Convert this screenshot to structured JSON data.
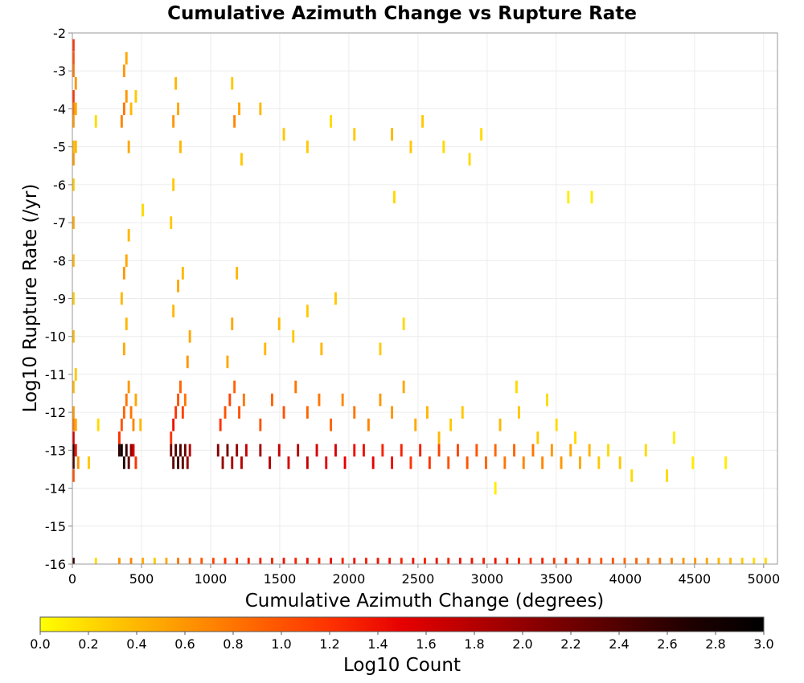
{
  "chart_data": {
    "type": "heatmap",
    "title": "Cumulative Azimuth Change vs Rupture Rate",
    "xlabel": "Cumulative Azimuth Change (degrees)",
    "ylabel": "Log10 Rupture Rate (/yr)",
    "xlim": [
      0,
      5100
    ],
    "ylim": [
      -16,
      -2
    ],
    "xticks": [
      0,
      500,
      1000,
      1500,
      2000,
      2500,
      3000,
      3500,
      4000,
      4500,
      5000
    ],
    "yticks": [
      -2,
      -3,
      -4,
      -5,
      -6,
      -7,
      -8,
      -9,
      -10,
      -11,
      -12,
      -13,
      -14,
      -15,
      -16
    ],
    "grid": true,
    "cell_width": 17,
    "cell_height": 0.33,
    "colorbar": {
      "label": "Log10 Count",
      "min": 0.0,
      "max": 3.0,
      "ticks": [
        "0.0",
        "0.2",
        "0.4",
        "0.6",
        "0.8",
        "1.0",
        "1.2",
        "1.4",
        "1.6",
        "1.8",
        "2.0",
        "2.2",
        "2.4",
        "2.6",
        "2.8",
        "3.0"
      ],
      "colors": [
        "#ffff00",
        "#ffc800",
        "#ff9600",
        "#ff6400",
        "#ff3200",
        "#e60000",
        "#b40000",
        "#820000",
        "#500000",
        "#1e0000",
        "#000000"
      ]
    },
    "notes": "Cells are sampled from the dense heatmap as [x_center, y_center, log10_count]",
    "cells": [
      [
        8,
        -13.0,
        2.6
      ],
      [
        8,
        -13.33,
        2.4
      ],
      [
        8,
        -12.67,
        1.6
      ],
      [
        8,
        -13.67,
        1.0
      ],
      [
        8,
        -12.33,
        0.8
      ],
      [
        8,
        -12.0,
        0.6
      ],
      [
        8,
        -11.33,
        0.4
      ],
      [
        8,
        -16.0,
        2.6
      ],
      [
        8,
        -2.33,
        1.2
      ],
      [
        8,
        -2.67,
        1.0
      ],
      [
        8,
        -3.0,
        0.8
      ],
      [
        8,
        -3.67,
        1.2
      ],
      [
        8,
        -4.0,
        0.8
      ],
      [
        8,
        -4.33,
        0.6
      ],
      [
        8,
        -5.0,
        0.4
      ],
      [
        8,
        -5.33,
        0.6
      ],
      [
        8,
        -6.0,
        0.3
      ],
      [
        8,
        -7.0,
        0.5
      ],
      [
        8,
        -8.0,
        0.4
      ],
      [
        8,
        -9.0,
        0.3
      ],
      [
        8,
        -10.0,
        0.4
      ],
      [
        25,
        -13.0,
        1.4
      ],
      [
        25,
        -3.33,
        0.6
      ],
      [
        25,
        -4.0,
        0.5
      ],
      [
        25,
        -5.0,
        0.4
      ],
      [
        25,
        -12.33,
        0.5
      ],
      [
        25,
        -11.0,
        0.3
      ],
      [
        42,
        -13.33,
        0.6
      ],
      [
        119,
        -13.33,
        0.3
      ],
      [
        170,
        -4.33,
        0.2
      ],
      [
        187,
        -12.33,
        0.2
      ],
      [
        340,
        -13.0,
        2.6
      ],
      [
        357,
        -13.0,
        2.8
      ],
      [
        374,
        -13.33,
        2.7
      ],
      [
        391,
        -13.0,
        2.6
      ],
      [
        408,
        -13.33,
        2.3
      ],
      [
        425,
        -13.0,
        2.0
      ],
      [
        442,
        -13.0,
        1.6
      ],
      [
        459,
        -13.33,
        1.2
      ],
      [
        340,
        -12.67,
        1.2
      ],
      [
        357,
        -12.33,
        1.0
      ],
      [
        374,
        -12.0,
        0.9
      ],
      [
        391,
        -11.67,
        0.8
      ],
      [
        408,
        -11.33,
        0.6
      ],
      [
        425,
        -12.0,
        0.8
      ],
      [
        442,
        -12.33,
        0.7
      ],
      [
        459,
        -11.67,
        0.5
      ],
      [
        374,
        -10.33,
        0.5
      ],
      [
        391,
        -9.67,
        0.4
      ],
      [
        357,
        -9.0,
        0.4
      ],
      [
        374,
        -8.33,
        0.6
      ],
      [
        391,
        -8.0,
        0.5
      ],
      [
        408,
        -7.33,
        0.4
      ],
      [
        357,
        -4.33,
        0.7
      ],
      [
        374,
        -4.0,
        0.8
      ],
      [
        391,
        -3.67,
        0.6
      ],
      [
        408,
        -5.0,
        0.5
      ],
      [
        374,
        -3.0,
        0.6
      ],
      [
        391,
        -2.67,
        0.5
      ],
      [
        425,
        -4.0,
        0.4
      ],
      [
        459,
        -3.67,
        0.3
      ],
      [
        510,
        -6.67,
        0.2
      ],
      [
        493,
        -12.33,
        0.4
      ],
      [
        714,
        -13.0,
        2.2
      ],
      [
        731,
        -13.33,
        2.3
      ],
      [
        748,
        -13.0,
        2.4
      ],
      [
        765,
        -13.33,
        2.5
      ],
      [
        782,
        -13.0,
        2.4
      ],
      [
        799,
        -13.33,
        2.3
      ],
      [
        816,
        -13.0,
        2.2
      ],
      [
        833,
        -13.33,
        2.0
      ],
      [
        850,
        -13.0,
        1.8
      ],
      [
        714,
        -12.67,
        1.2
      ],
      [
        731,
        -12.33,
        1.4
      ],
      [
        748,
        -12.0,
        1.2
      ],
      [
        765,
        -11.67,
        1.0
      ],
      [
        782,
        -11.33,
        0.9
      ],
      [
        799,
        -12.0,
        1.1
      ],
      [
        816,
        -11.67,
        0.8
      ],
      [
        833,
        -10.67,
        0.6
      ],
      [
        850,
        -10.0,
        0.5
      ],
      [
        731,
        -9.33,
        0.4
      ],
      [
        765,
        -8.67,
        0.5
      ],
      [
        799,
        -8.33,
        0.4
      ],
      [
        731,
        -4.33,
        0.6
      ],
      [
        765,
        -4.0,
        0.5
      ],
      [
        748,
        -3.33,
        0.4
      ],
      [
        782,
        -5.0,
        0.4
      ],
      [
        731,
        -6.0,
        0.3
      ],
      [
        714,
        -7.0,
        0.3
      ],
      [
        1054,
        -13.0,
        2.1
      ],
      [
        1088,
        -13.33,
        2.0
      ],
      [
        1122,
        -13.0,
        2.2
      ],
      [
        1156,
        -13.33,
        1.9
      ],
      [
        1190,
        -13.0,
        2.0
      ],
      [
        1224,
        -13.33,
        1.8
      ],
      [
        1258,
        -13.0,
        1.7
      ],
      [
        1071,
        -12.33,
        1.2
      ],
      [
        1105,
        -12.0,
        1.0
      ],
      [
        1139,
        -11.67,
        1.1
      ],
      [
        1173,
        -11.33,
        0.9
      ],
      [
        1207,
        -12.0,
        1.0
      ],
      [
        1241,
        -11.67,
        0.8
      ],
      [
        1122,
        -10.67,
        0.5
      ],
      [
        1156,
        -9.67,
        0.5
      ],
      [
        1190,
        -8.33,
        0.4
      ],
      [
        1173,
        -4.33,
        0.7
      ],
      [
        1207,
        -4.0,
        0.5
      ],
      [
        1156,
        -3.33,
        0.3
      ],
      [
        1224,
        -5.33,
        0.3
      ],
      [
        1360,
        -13.0,
        1.9
      ],
      [
        1428,
        -13.33,
        1.8
      ],
      [
        1496,
        -13.0,
        1.7
      ],
      [
        1564,
        -13.33,
        1.6
      ],
      [
        1632,
        -13.0,
        1.8
      ],
      [
        1700,
        -13.33,
        1.7
      ],
      [
        1768,
        -13.0,
        1.6
      ],
      [
        1836,
        -13.33,
        1.5
      ],
      [
        1904,
        -13.0,
        1.6
      ],
      [
        1972,
        -13.33,
        1.5
      ],
      [
        2040,
        -13.0,
        1.4
      ],
      [
        1360,
        -12.33,
        1.0
      ],
      [
        1445,
        -11.67,
        0.9
      ],
      [
        1530,
        -12.0,
        1.0
      ],
      [
        1615,
        -11.33,
        0.8
      ],
      [
        1700,
        -12.0,
        0.9
      ],
      [
        1785,
        -11.67,
        0.8
      ],
      [
        1870,
        -12.33,
        0.9
      ],
      [
        1955,
        -11.67,
        0.7
      ],
      [
        2040,
        -12.0,
        0.8
      ],
      [
        1394,
        -10.33,
        0.4
      ],
      [
        1496,
        -9.67,
        0.4
      ],
      [
        1598,
        -10.0,
        0.3
      ],
      [
        1700,
        -9.33,
        0.3
      ],
      [
        1802,
        -10.33,
        0.4
      ],
      [
        1904,
        -9.0,
        0.3
      ],
      [
        1360,
        -4.0,
        0.4
      ],
      [
        1530,
        -4.67,
        0.3
      ],
      [
        1700,
        -5.0,
        0.3
      ],
      [
        1870,
        -4.33,
        0.2
      ],
      [
        2040,
        -4.67,
        0.3
      ],
      [
        2108,
        -13.0,
        1.4
      ],
      [
        2176,
        -13.33,
        1.5
      ],
      [
        2244,
        -13.0,
        1.3
      ],
      [
        2312,
        -13.33,
        1.4
      ],
      [
        2380,
        -13.0,
        1.3
      ],
      [
        2448,
        -13.33,
        1.2
      ],
      [
        2516,
        -13.0,
        1.3
      ],
      [
        2584,
        -13.33,
        1.2
      ],
      [
        2652,
        -13.0,
        1.1
      ],
      [
        2720,
        -13.33,
        1.0
      ],
      [
        2788,
        -13.0,
        1.1
      ],
      [
        2856,
        -13.33,
        1.0
      ],
      [
        2924,
        -13.0,
        1.0
      ],
      [
        2992,
        -13.33,
        0.9
      ],
      [
        2142,
        -12.33,
        0.7
      ],
      [
        2227,
        -11.67,
        0.6
      ],
      [
        2312,
        -12.0,
        0.6
      ],
      [
        2397,
        -11.33,
        0.5
      ],
      [
        2482,
        -12.33,
        0.5
      ],
      [
        2567,
        -12.0,
        0.4
      ],
      [
        2652,
        -12.67,
        0.4
      ],
      [
        2737,
        -12.33,
        0.3
      ],
      [
        2822,
        -12.0,
        0.3
      ],
      [
        2227,
        -10.33,
        0.3
      ],
      [
        2397,
        -9.67,
        0.2
      ],
      [
        2312,
        -4.67,
        0.4
      ],
      [
        2448,
        -5.0,
        0.3
      ],
      [
        2533,
        -4.33,
        0.3
      ],
      [
        2686,
        -5.0,
        0.2
      ],
      [
        2873,
        -5.33,
        0.2
      ],
      [
        2958,
        -4.67,
        0.2
      ],
      [
        2329,
        -6.33,
        0.2
      ],
      [
        3060,
        -13.0,
        0.9
      ],
      [
        3128,
        -13.33,
        0.8
      ],
      [
        3196,
        -13.0,
        0.9
      ],
      [
        3264,
        -13.33,
        0.7
      ],
      [
        3332,
        -13.0,
        0.8
      ],
      [
        3400,
        -13.33,
        0.7
      ],
      [
        3468,
        -13.0,
        0.6
      ],
      [
        3536,
        -13.33,
        0.6
      ],
      [
        3604,
        -13.0,
        0.5
      ],
      [
        3672,
        -13.33,
        0.5
      ],
      [
        3740,
        -13.0,
        0.4
      ],
      [
        3808,
        -13.33,
        0.3
      ],
      [
        3876,
        -13.0,
        0.2
      ],
      [
        3094,
        -12.33,
        0.4
      ],
      [
        3230,
        -12.0,
        0.3
      ],
      [
        3366,
        -12.67,
        0.3
      ],
      [
        3502,
        -12.33,
        0.2
      ],
      [
        3638,
        -12.67,
        0.2
      ],
      [
        3213,
        -11.33,
        0.2
      ],
      [
        3434,
        -11.67,
        0.2
      ],
      [
        3587,
        -6.33,
        0.1
      ],
      [
        3757,
        -6.33,
        0.1
      ],
      [
        3060,
        -14.0,
        0.1
      ],
      [
        3961,
        -13.33,
        0.3
      ],
      [
        4046,
        -13.67,
        0.2
      ],
      [
        4148,
        -13.0,
        0.2
      ],
      [
        4301,
        -13.67,
        0.2
      ],
      [
        4488,
        -13.33,
        0.1
      ],
      [
        4726,
        -13.33,
        0.1
      ],
      [
        4352,
        -12.67,
        0.1
      ],
      [
        170,
        -16.0,
        0.2
      ],
      [
        340,
        -16.0,
        0.6
      ],
      [
        425,
        -16.0,
        0.7
      ],
      [
        510,
        -16.0,
        0.5
      ],
      [
        595,
        -16.0,
        0.3
      ],
      [
        680,
        -16.0,
        0.5
      ],
      [
        765,
        -16.0,
        0.8
      ],
      [
        850,
        -16.0,
        0.9
      ],
      [
        935,
        -16.0,
        1.0
      ],
      [
        1020,
        -16.0,
        1.1
      ],
      [
        1105,
        -16.0,
        1.2
      ],
      [
        1190,
        -16.0,
        1.2
      ],
      [
        1275,
        -16.0,
        1.3
      ],
      [
        1360,
        -16.0,
        1.3
      ],
      [
        1445,
        -16.0,
        1.3
      ],
      [
        1530,
        -16.0,
        1.4
      ],
      [
        1615,
        -16.0,
        1.3
      ],
      [
        1700,
        -16.0,
        1.4
      ],
      [
        1785,
        -16.0,
        1.3
      ],
      [
        1870,
        -16.0,
        1.4
      ],
      [
        1955,
        -16.0,
        1.3
      ],
      [
        2040,
        -16.0,
        1.4
      ],
      [
        2125,
        -16.0,
        1.3
      ],
      [
        2210,
        -16.0,
        1.4
      ],
      [
        2295,
        -16.0,
        1.4
      ],
      [
        2380,
        -16.0,
        1.3
      ],
      [
        2465,
        -16.0,
        1.4
      ],
      [
        2550,
        -16.0,
        1.3
      ],
      [
        2635,
        -16.0,
        1.4
      ],
      [
        2720,
        -16.0,
        1.3
      ],
      [
        2805,
        -16.0,
        1.4
      ],
      [
        2890,
        -16.0,
        1.4
      ],
      [
        2975,
        -16.0,
        1.3
      ],
      [
        3060,
        -16.0,
        1.4
      ],
      [
        3145,
        -16.0,
        1.3
      ],
      [
        3230,
        -16.0,
        1.3
      ],
      [
        3315,
        -16.0,
        1.2
      ],
      [
        3400,
        -16.0,
        1.3
      ],
      [
        3485,
        -16.0,
        1.2
      ],
      [
        3570,
        -16.0,
        1.2
      ],
      [
        3655,
        -16.0,
        1.1
      ],
      [
        3740,
        -16.0,
        1.1
      ],
      [
        3825,
        -16.0,
        1.0
      ],
      [
        3910,
        -16.0,
        1.0
      ],
      [
        3995,
        -16.0,
        0.9
      ],
      [
        4080,
        -16.0,
        0.9
      ],
      [
        4165,
        -16.0,
        0.8
      ],
      [
        4250,
        -16.0,
        0.8
      ],
      [
        4335,
        -16.0,
        0.7
      ],
      [
        4420,
        -16.0,
        0.6
      ],
      [
        4505,
        -16.0,
        0.6
      ],
      [
        4590,
        -16.0,
        0.5
      ],
      [
        4675,
        -16.0,
        0.4
      ],
      [
        4760,
        -16.0,
        0.4
      ],
      [
        4845,
        -16.0,
        0.3
      ],
      [
        4930,
        -16.0,
        0.2
      ],
      [
        5015,
        -16.0,
        0.2
      ]
    ]
  }
}
